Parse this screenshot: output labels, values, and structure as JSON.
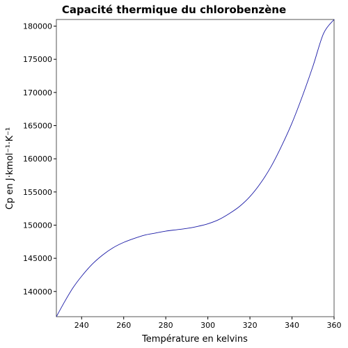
{
  "chart_data": {
    "type": "line",
    "title": "Capacité thermique du chlorobenzène",
    "xlabel": "Température en kelvins",
    "ylabel": "Cp en J·kmol⁻¹·K⁻¹",
    "xlim": [
      228,
      360
    ],
    "ylim": [
      136200,
      181000
    ],
    "x_ticks": [
      "240",
      "260",
      "280",
      "300",
      "320",
      "340",
      "360"
    ],
    "y_ticks": [
      "140000",
      "145000",
      "150000",
      "155000",
      "160000",
      "165000",
      "170000",
      "175000",
      "180000"
    ],
    "grid": false,
    "line_color": "#1a1aa6",
    "series": [
      {
        "x": [
          228,
          232,
          236,
          240,
          245,
          250,
          255,
          260,
          265,
          270,
          275,
          280,
          285,
          290,
          295,
          300,
          305,
          310,
          315,
          320,
          325,
          330,
          335,
          340,
          345,
          350,
          355,
          360
        ],
        "values": [
          136200,
          138500,
          140600,
          142300,
          144100,
          145500,
          146600,
          147400,
          148000,
          148500,
          148800,
          149100,
          149300,
          149500,
          149800,
          150200,
          150800,
          151700,
          152800,
          154300,
          156300,
          158800,
          161900,
          165400,
          169500,
          174000,
          178900,
          181000
        ]
      }
    ]
  }
}
